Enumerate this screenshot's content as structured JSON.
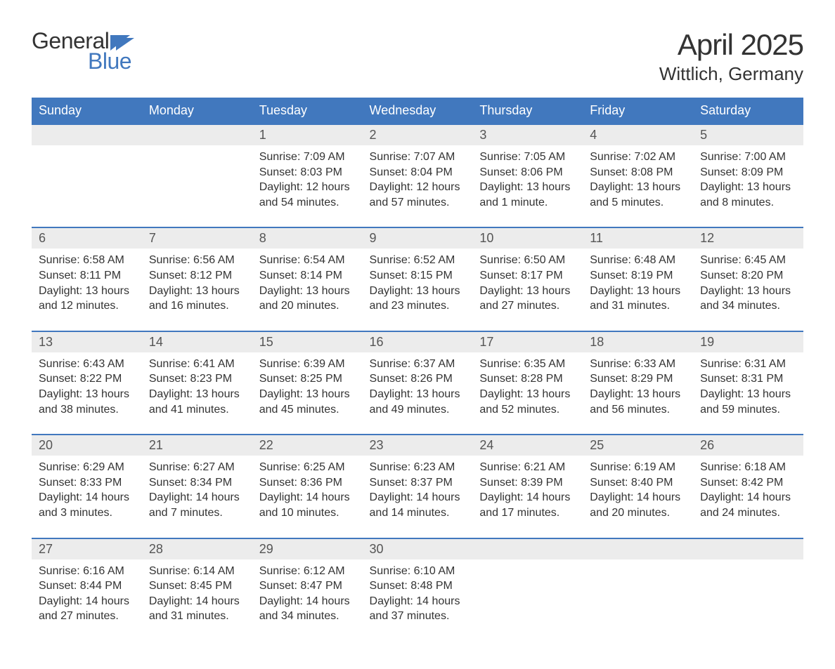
{
  "logo": {
    "text1": "General",
    "text2": "Blue",
    "flag_color": "#4178be"
  },
  "title": "April 2025",
  "location": "Wittlich, Germany",
  "colors": {
    "header_bg": "#4178be",
    "row_accent": "#4178be",
    "daynum_bg": "#ececec",
    "text": "#333333"
  },
  "columns": [
    "Sunday",
    "Monday",
    "Tuesday",
    "Wednesday",
    "Thursday",
    "Friday",
    "Saturday"
  ],
  "weeks": [
    {
      "days": [
        null,
        null,
        {
          "n": "1",
          "sunrise": "Sunrise: 7:09 AM",
          "sunset": "Sunset: 8:03 PM",
          "daylight": "Daylight: 12 hours and 54 minutes."
        },
        {
          "n": "2",
          "sunrise": "Sunrise: 7:07 AM",
          "sunset": "Sunset: 8:04 PM",
          "daylight": "Daylight: 12 hours and 57 minutes."
        },
        {
          "n": "3",
          "sunrise": "Sunrise: 7:05 AM",
          "sunset": "Sunset: 8:06 PM",
          "daylight": "Daylight: 13 hours and 1 minute."
        },
        {
          "n": "4",
          "sunrise": "Sunrise: 7:02 AM",
          "sunset": "Sunset: 8:08 PM",
          "daylight": "Daylight: 13 hours and 5 minutes."
        },
        {
          "n": "5",
          "sunrise": "Sunrise: 7:00 AM",
          "sunset": "Sunset: 8:09 PM",
          "daylight": "Daylight: 13 hours and 8 minutes."
        }
      ]
    },
    {
      "days": [
        {
          "n": "6",
          "sunrise": "Sunrise: 6:58 AM",
          "sunset": "Sunset: 8:11 PM",
          "daylight": "Daylight: 13 hours and 12 minutes."
        },
        {
          "n": "7",
          "sunrise": "Sunrise: 6:56 AM",
          "sunset": "Sunset: 8:12 PM",
          "daylight": "Daylight: 13 hours and 16 minutes."
        },
        {
          "n": "8",
          "sunrise": "Sunrise: 6:54 AM",
          "sunset": "Sunset: 8:14 PM",
          "daylight": "Daylight: 13 hours and 20 minutes."
        },
        {
          "n": "9",
          "sunrise": "Sunrise: 6:52 AM",
          "sunset": "Sunset: 8:15 PM",
          "daylight": "Daylight: 13 hours and 23 minutes."
        },
        {
          "n": "10",
          "sunrise": "Sunrise: 6:50 AM",
          "sunset": "Sunset: 8:17 PM",
          "daylight": "Daylight: 13 hours and 27 minutes."
        },
        {
          "n": "11",
          "sunrise": "Sunrise: 6:48 AM",
          "sunset": "Sunset: 8:19 PM",
          "daylight": "Daylight: 13 hours and 31 minutes."
        },
        {
          "n": "12",
          "sunrise": "Sunrise: 6:45 AM",
          "sunset": "Sunset: 8:20 PM",
          "daylight": "Daylight: 13 hours and 34 minutes."
        }
      ]
    },
    {
      "days": [
        {
          "n": "13",
          "sunrise": "Sunrise: 6:43 AM",
          "sunset": "Sunset: 8:22 PM",
          "daylight": "Daylight: 13 hours and 38 minutes."
        },
        {
          "n": "14",
          "sunrise": "Sunrise: 6:41 AM",
          "sunset": "Sunset: 8:23 PM",
          "daylight": "Daylight: 13 hours and 41 minutes."
        },
        {
          "n": "15",
          "sunrise": "Sunrise: 6:39 AM",
          "sunset": "Sunset: 8:25 PM",
          "daylight": "Daylight: 13 hours and 45 minutes."
        },
        {
          "n": "16",
          "sunrise": "Sunrise: 6:37 AM",
          "sunset": "Sunset: 8:26 PM",
          "daylight": "Daylight: 13 hours and 49 minutes."
        },
        {
          "n": "17",
          "sunrise": "Sunrise: 6:35 AM",
          "sunset": "Sunset: 8:28 PM",
          "daylight": "Daylight: 13 hours and 52 minutes."
        },
        {
          "n": "18",
          "sunrise": "Sunrise: 6:33 AM",
          "sunset": "Sunset: 8:29 PM",
          "daylight": "Daylight: 13 hours and 56 minutes."
        },
        {
          "n": "19",
          "sunrise": "Sunrise: 6:31 AM",
          "sunset": "Sunset: 8:31 PM",
          "daylight": "Daylight: 13 hours and 59 minutes."
        }
      ]
    },
    {
      "days": [
        {
          "n": "20",
          "sunrise": "Sunrise: 6:29 AM",
          "sunset": "Sunset: 8:33 PM",
          "daylight": "Daylight: 14 hours and 3 minutes."
        },
        {
          "n": "21",
          "sunrise": "Sunrise: 6:27 AM",
          "sunset": "Sunset: 8:34 PM",
          "daylight": "Daylight: 14 hours and 7 minutes."
        },
        {
          "n": "22",
          "sunrise": "Sunrise: 6:25 AM",
          "sunset": "Sunset: 8:36 PM",
          "daylight": "Daylight: 14 hours and 10 minutes."
        },
        {
          "n": "23",
          "sunrise": "Sunrise: 6:23 AM",
          "sunset": "Sunset: 8:37 PM",
          "daylight": "Daylight: 14 hours and 14 minutes."
        },
        {
          "n": "24",
          "sunrise": "Sunrise: 6:21 AM",
          "sunset": "Sunset: 8:39 PM",
          "daylight": "Daylight: 14 hours and 17 minutes."
        },
        {
          "n": "25",
          "sunrise": "Sunrise: 6:19 AM",
          "sunset": "Sunset: 8:40 PM",
          "daylight": "Daylight: 14 hours and 20 minutes."
        },
        {
          "n": "26",
          "sunrise": "Sunrise: 6:18 AM",
          "sunset": "Sunset: 8:42 PM",
          "daylight": "Daylight: 14 hours and 24 minutes."
        }
      ]
    },
    {
      "days": [
        {
          "n": "27",
          "sunrise": "Sunrise: 6:16 AM",
          "sunset": "Sunset: 8:44 PM",
          "daylight": "Daylight: 14 hours and 27 minutes."
        },
        {
          "n": "28",
          "sunrise": "Sunrise: 6:14 AM",
          "sunset": "Sunset: 8:45 PM",
          "daylight": "Daylight: 14 hours and 31 minutes."
        },
        {
          "n": "29",
          "sunrise": "Sunrise: 6:12 AM",
          "sunset": "Sunset: 8:47 PM",
          "daylight": "Daylight: 14 hours and 34 minutes."
        },
        {
          "n": "30",
          "sunrise": "Sunrise: 6:10 AM",
          "sunset": "Sunset: 8:48 PM",
          "daylight": "Daylight: 14 hours and 37 minutes."
        },
        null,
        null,
        null
      ]
    }
  ]
}
